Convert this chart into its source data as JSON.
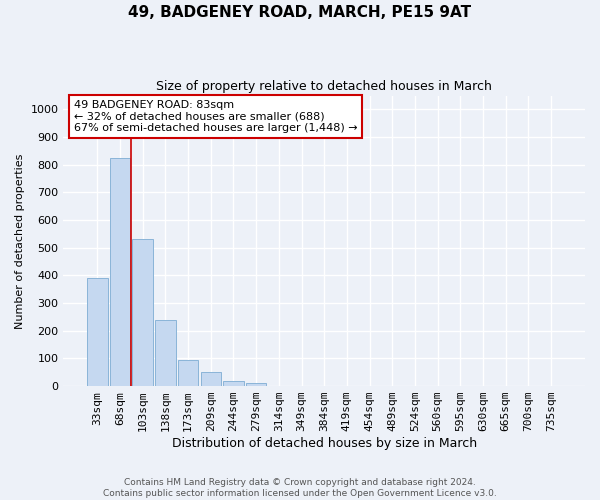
{
  "title": "49, BADGENEY ROAD, MARCH, PE15 9AT",
  "subtitle": "Size of property relative to detached houses in March",
  "xlabel": "Distribution of detached houses by size in March",
  "ylabel": "Number of detached properties",
  "bar_labels": [
    "33sqm",
    "68sqm",
    "103sqm",
    "138sqm",
    "173sqm",
    "209sqm",
    "244sqm",
    "279sqm",
    "314sqm",
    "349sqm",
    "384sqm",
    "419sqm",
    "454sqm",
    "489sqm",
    "524sqm",
    "560sqm",
    "595sqm",
    "630sqm",
    "665sqm",
    "700sqm",
    "735sqm"
  ],
  "bar_values": [
    390,
    825,
    530,
    240,
    95,
    50,
    20,
    10,
    0,
    0,
    0,
    0,
    0,
    0,
    0,
    0,
    0,
    0,
    0,
    0,
    0
  ],
  "bar_color": "#c5d8f0",
  "bar_edge_color": "#8ab4d8",
  "ylim": [
    0,
    1050
  ],
  "yticks": [
    0,
    100,
    200,
    300,
    400,
    500,
    600,
    700,
    800,
    900,
    1000
  ],
  "red_line_x": 1.5,
  "annotation_text": "49 BADGENEY ROAD: 83sqm\n← 32% of detached houses are smaller (688)\n67% of semi-detached houses are larger (1,448) →",
  "annotation_box_color": "#ffffff",
  "annotation_border_color": "#cc0000",
  "footer_text": "Contains HM Land Registry data © Crown copyright and database right 2024.\nContains public sector information licensed under the Open Government Licence v3.0.",
  "bg_color": "#edf1f8",
  "grid_color": "#ffffff",
  "title_fontsize": 11,
  "subtitle_fontsize": 9,
  "xlabel_fontsize": 9,
  "ylabel_fontsize": 8,
  "tick_fontsize": 8,
  "annotation_fontsize": 8,
  "footer_fontsize": 6.5
}
